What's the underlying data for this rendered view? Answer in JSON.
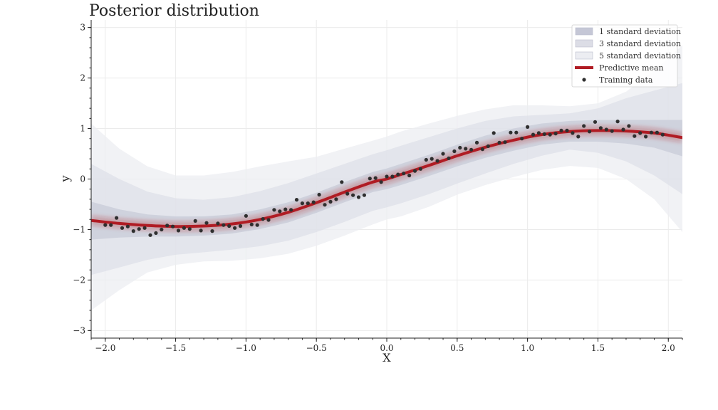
{
  "chart_data": {
    "type": "line",
    "title": "Posterior distribution",
    "xlabel": "X",
    "ylabel": "y",
    "xlim": [
      -2.1,
      2.1
    ],
    "ylim": [
      -3.15,
      3.15
    ],
    "xticks": [
      -2.0,
      -1.5,
      -1.0,
      -0.5,
      0.0,
      0.5,
      1.0,
      1.5,
      2.0
    ],
    "xtick_labels": [
      "−2.0",
      "−1.5",
      "−1.0",
      "−0.5",
      "0.0",
      "0.5",
      "1.0",
      "1.5",
      "2.0"
    ],
    "yticks": [
      -3,
      -2,
      -1,
      0,
      1,
      2,
      3
    ],
    "ytick_labels": [
      "−3",
      "−2",
      "−1",
      "0",
      "1",
      "2",
      "3"
    ],
    "grid": true,
    "legend_position": "top-right",
    "legend": [
      {
        "label": "1 standard deviation",
        "kind": "band"
      },
      {
        "label": "3 standard deviation",
        "kind": "band"
      },
      {
        "label": "5 standard deviation",
        "kind": "band"
      },
      {
        "label": "Predictive mean",
        "kind": "line"
      },
      {
        "label": "Training data",
        "kind": "marker"
      }
    ],
    "colors": {
      "mean": "#b01c24",
      "band1": "#c5c7d6",
      "band3": "#dcdde6",
      "band5": "#ecedf2",
      "points": "#2f2f2f",
      "grid": "#ebebeb"
    },
    "predictive_mean": {
      "x": [
        -2.1,
        -1.9,
        -1.7,
        -1.5,
        -1.3,
        -1.1,
        -0.9,
        -0.7,
        -0.5,
        -0.3,
        -0.1,
        0.0,
        0.1,
        0.3,
        0.5,
        0.7,
        0.9,
        1.1,
        1.3,
        1.5,
        1.7,
        1.9,
        2.1
      ],
      "y": [
        -0.82,
        -0.88,
        -0.92,
        -0.94,
        -0.93,
        -0.89,
        -0.8,
        -0.66,
        -0.47,
        -0.26,
        -0.06,
        0.0,
        0.09,
        0.27,
        0.46,
        0.63,
        0.77,
        0.88,
        0.94,
        0.96,
        0.95,
        0.91,
        0.82
      ]
    },
    "bands": [
      {
        "name": "5 standard deviation",
        "x": [
          -2.1,
          -1.9,
          -1.7,
          -1.5,
          -1.3,
          -1.1,
          -0.9,
          -0.7,
          -0.5,
          -0.3,
          -0.1,
          0.0,
          0.1,
          0.3,
          0.5,
          0.7,
          0.9,
          1.1,
          1.3,
          1.5,
          1.7,
          1.9,
          2.1
        ],
        "upper": [
          1.1,
          0.6,
          0.25,
          0.07,
          0.07,
          0.14,
          0.25,
          0.35,
          0.44,
          0.6,
          0.76,
          0.84,
          0.94,
          1.1,
          1.25,
          1.38,
          1.46,
          1.46,
          1.44,
          1.5,
          1.73,
          2.15,
          2.65
        ],
        "lower": [
          -2.6,
          -2.2,
          -1.85,
          -1.7,
          -1.63,
          -1.62,
          -1.57,
          -1.48,
          -1.32,
          -1.12,
          -0.9,
          -0.8,
          -0.74,
          -0.55,
          -0.31,
          -0.12,
          0.04,
          0.18,
          0.26,
          0.22,
          0.0,
          -0.4,
          -1.05
        ]
      },
      {
        "name": "3 standard deviation",
        "x": [
          -2.1,
          -1.9,
          -1.7,
          -1.5,
          -1.3,
          -1.1,
          -0.9,
          -0.7,
          -0.5,
          -0.3,
          -0.1,
          0.0,
          0.1,
          0.3,
          0.5,
          0.7,
          0.9,
          1.1,
          1.3,
          1.5,
          1.7,
          1.9,
          2.1
        ],
        "upper": [
          0.3,
          0.0,
          -0.25,
          -0.38,
          -0.41,
          -0.36,
          -0.24,
          -0.08,
          0.11,
          0.3,
          0.49,
          0.57,
          0.66,
          0.83,
          1.0,
          1.15,
          1.24,
          1.27,
          1.3,
          1.4,
          1.6,
          1.75,
          1.9
        ],
        "lower": [
          -1.9,
          -1.75,
          -1.6,
          -1.5,
          -1.45,
          -1.4,
          -1.33,
          -1.22,
          -1.05,
          -0.85,
          -0.63,
          -0.56,
          -0.48,
          -0.3,
          -0.09,
          0.11,
          0.3,
          0.46,
          0.58,
          0.52,
          0.35,
          0.07,
          -0.3
        ]
      },
      {
        "name": "1 standard deviation",
        "x": [
          -2.1,
          -1.9,
          -1.7,
          -1.5,
          -1.3,
          -1.1,
          -0.9,
          -0.7,
          -0.5,
          -0.3,
          -0.1,
          0.0,
          0.1,
          0.3,
          0.5,
          0.7,
          0.9,
          1.1,
          1.3,
          1.5,
          1.7,
          1.9,
          2.1
        ],
        "upper": [
          -0.45,
          -0.6,
          -0.7,
          -0.74,
          -0.74,
          -0.7,
          -0.6,
          -0.46,
          -0.27,
          -0.06,
          0.14,
          0.21,
          0.3,
          0.48,
          0.68,
          0.86,
          1.0,
          1.1,
          1.15,
          1.17,
          1.17,
          1.17,
          1.17
        ],
        "lower": [
          -1.2,
          -1.16,
          -1.14,
          -1.14,
          -1.12,
          -1.08,
          -0.99,
          -0.86,
          -0.67,
          -0.46,
          -0.26,
          -0.2,
          -0.12,
          0.06,
          0.25,
          0.42,
          0.56,
          0.68,
          0.74,
          0.74,
          0.7,
          0.62,
          0.45
        ]
      }
    ],
    "training_data": {
      "x": [
        -2.0,
        -1.96,
        -1.92,
        -1.88,
        -1.84,
        -1.8,
        -1.76,
        -1.72,
        -1.68,
        -1.64,
        -1.6,
        -1.56,
        -1.52,
        -1.48,
        -1.44,
        -1.4,
        -1.36,
        -1.32,
        -1.28,
        -1.24,
        -1.2,
        -1.16,
        -1.12,
        -1.08,
        -1.04,
        -1.0,
        -0.96,
        -0.92,
        -0.88,
        -0.84,
        -0.8,
        -0.76,
        -0.72,
        -0.68,
        -0.64,
        -0.6,
        -0.56,
        -0.52,
        -0.48,
        -0.44,
        -0.4,
        -0.36,
        -0.32,
        -0.28,
        -0.24,
        -0.2,
        -0.16,
        -0.12,
        -0.08,
        -0.04,
        0.0,
        0.04,
        0.08,
        0.12,
        0.16,
        0.2,
        0.24,
        0.28,
        0.32,
        0.36,
        0.4,
        0.44,
        0.48,
        0.52,
        0.56,
        0.6,
        0.64,
        0.68,
        0.72,
        0.76,
        0.8,
        0.84,
        0.88,
        0.92,
        0.96,
        1.0,
        1.04,
        1.08,
        1.12,
        1.16,
        1.2,
        1.24,
        1.28,
        1.32,
        1.36,
        1.4,
        1.44,
        1.48,
        1.52,
        1.56,
        1.6,
        1.64,
        1.68,
        1.72,
        1.76,
        1.8,
        1.84,
        1.88,
        1.92,
        1.96
      ],
      "y": [
        -0.91,
        -0.91,
        -0.77,
        -0.97,
        -0.94,
        -1.03,
        -0.99,
        -0.97,
        -1.11,
        -1.07,
        -1.0,
        -0.92,
        -0.94,
        -1.02,
        -0.97,
        -0.99,
        -0.83,
        -1.02,
        -0.87,
        -1.03,
        -0.88,
        -0.91,
        -0.93,
        -0.97,
        -0.93,
        -0.73,
        -0.9,
        -0.91,
        -0.79,
        -0.81,
        -0.61,
        -0.64,
        -0.6,
        -0.61,
        -0.41,
        -0.48,
        -0.48,
        -0.46,
        -0.31,
        -0.51,
        -0.45,
        -0.4,
        -0.06,
        -0.29,
        -0.32,
        -0.36,
        -0.32,
        0.01,
        0.02,
        -0.06,
        0.05,
        0.05,
        0.09,
        0.11,
        0.07,
        0.16,
        0.2,
        0.38,
        0.4,
        0.36,
        0.5,
        0.41,
        0.55,
        0.62,
        0.6,
        0.58,
        0.72,
        0.59,
        0.65,
        0.91,
        0.72,
        0.73,
        0.92,
        0.92,
        0.8,
        1.03,
        0.88,
        0.91,
        0.89,
        0.88,
        0.9,
        0.96,
        0.96,
        0.91,
        0.84,
        1.05,
        0.94,
        1.13,
        1.01,
        0.98,
        0.95,
        1.14,
        0.98,
        1.05,
        0.85,
        0.91,
        0.84,
        0.92,
        0.92,
        0.88
      ]
    }
  }
}
